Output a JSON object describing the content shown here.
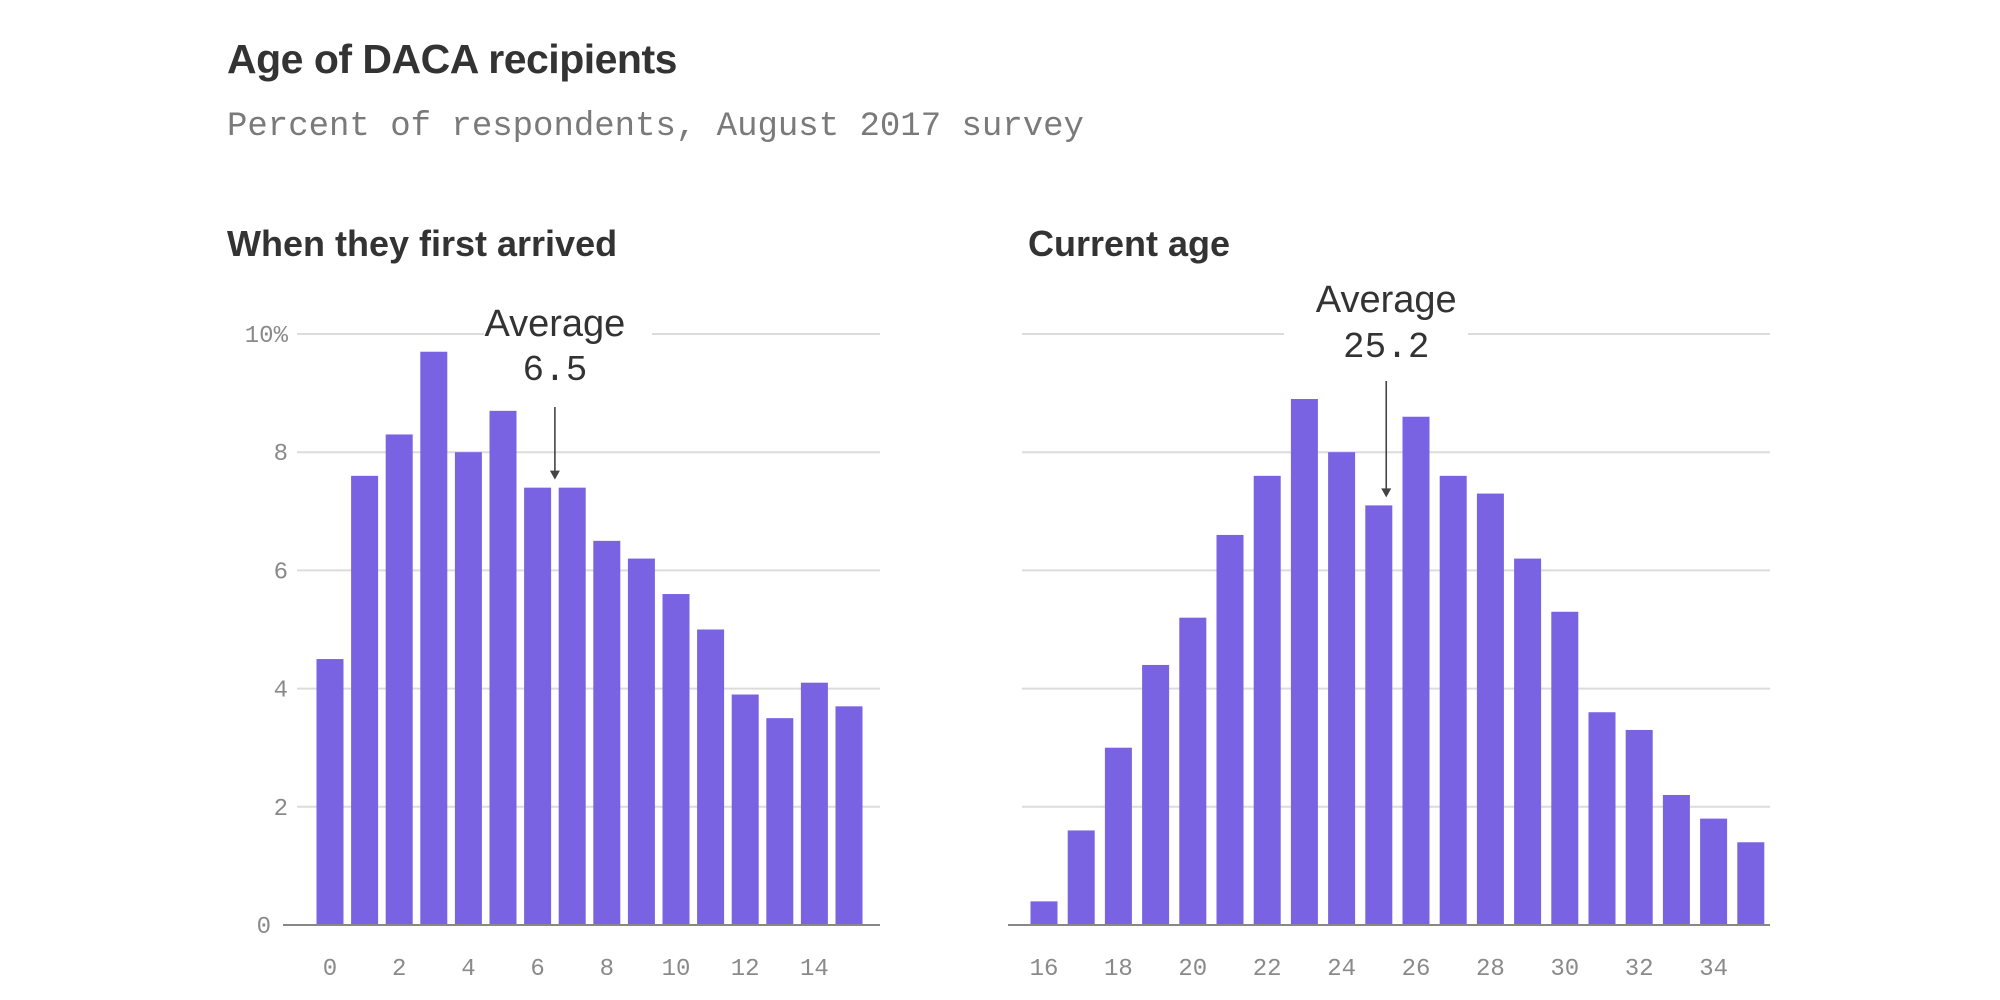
{
  "header": {
    "title": "Age of DACA recipients",
    "subtitle": "Percent of respondents, August 2017 survey"
  },
  "colors": {
    "bar": "#7a63e2",
    "text": "#333333",
    "grid": "#dcdcdc",
    "tick": "#8a8a8a"
  },
  "chart_data": [
    {
      "type": "bar",
      "title": "When they first arrived",
      "xlabel": "",
      "ylabel": "",
      "categories": [
        0,
        1,
        2,
        3,
        4,
        5,
        6,
        7,
        8,
        9,
        10,
        11,
        12,
        13,
        14,
        15
      ],
      "values": [
        4.5,
        7.6,
        8.3,
        9.7,
        8.0,
        8.7,
        7.4,
        7.4,
        6.5,
        6.2,
        5.6,
        5.0,
        3.9,
        3.5,
        4.1,
        3.7
      ],
      "ylim": [
        0,
        10
      ],
      "yticks": [
        0,
        2,
        4,
        6,
        8,
        10
      ],
      "ytick_labels": [
        "0",
        "2",
        "4",
        "6",
        "8",
        "10%"
      ],
      "xticks": [
        0,
        2,
        4,
        6,
        8,
        10,
        12,
        14
      ],
      "grid": true,
      "annotation": {
        "label": "Average",
        "value": "6.5",
        "x": 6.5
      }
    },
    {
      "type": "bar",
      "title": "Current age",
      "xlabel": "",
      "ylabel": "",
      "categories": [
        16,
        17,
        18,
        19,
        20,
        21,
        22,
        23,
        24,
        25,
        26,
        27,
        28,
        29,
        30,
        31,
        32,
        33,
        34,
        35
      ],
      "values": [
        0.4,
        1.6,
        3.0,
        4.4,
        5.2,
        6.6,
        7.6,
        8.9,
        8.0,
        7.1,
        8.6,
        7.6,
        7.3,
        6.2,
        5.3,
        3.6,
        3.3,
        2.2,
        1.8,
        1.4
      ],
      "ylim": [
        0,
        10
      ],
      "yticks": [
        0,
        2,
        4,
        6,
        8,
        10
      ],
      "ytick_labels": [],
      "xticks": [
        16,
        18,
        20,
        22,
        24,
        26,
        28,
        30,
        32,
        34
      ],
      "grid": true,
      "annotation": {
        "label": "Average",
        "value": "25.2",
        "x": 25.2
      }
    }
  ]
}
